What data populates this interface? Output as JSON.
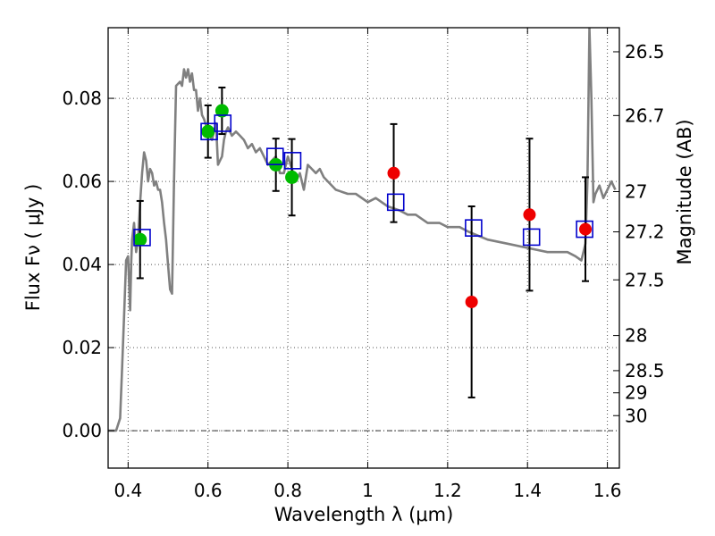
{
  "chart_data": {
    "type": "scatter",
    "xlabel": "Wavelength  λ (μm)",
    "ylabel": "Flux  Fν  ( μJy )",
    "ylabel_right": "Magnitude (AB)",
    "xlim": [
      0.35,
      1.63
    ],
    "ylim": [
      -0.009,
      0.097
    ],
    "grid": true,
    "x_ticks": [
      {
        "value": 0.4,
        "label": "0.4"
      },
      {
        "value": 0.6,
        "label": "0.6"
      },
      {
        "value": 0.8,
        "label": "0.8"
      },
      {
        "value": 1.0,
        "label": "1"
      },
      {
        "value": 1.2,
        "label": "1.2"
      },
      {
        "value": 1.4,
        "label": "1.4"
      },
      {
        "value": 1.6,
        "label": "1.6"
      }
    ],
    "y_ticks": [
      {
        "value": 0.0,
        "label": "0.00"
      },
      {
        "value": 0.02,
        "label": "0.02"
      },
      {
        "value": 0.04,
        "label": "0.04"
      },
      {
        "value": 0.06,
        "label": "0.06"
      },
      {
        "value": 0.08,
        "label": "0.08"
      }
    ],
    "right_ticks": [
      {
        "mag": 26.5,
        "label": "26.5"
      },
      {
        "mag": 26.7,
        "label": "26.7"
      },
      {
        "mag": 27.0,
        "label": "27"
      },
      {
        "mag": 27.2,
        "label": "27.2"
      },
      {
        "mag": 27.5,
        "label": "27.5"
      },
      {
        "mag": 28.0,
        "label": "28"
      },
      {
        "mag": 28.5,
        "label": "28.5"
      },
      {
        "mag": 29.0,
        "label": "29"
      },
      {
        "mag": 30.0,
        "label": "30"
      }
    ],
    "colors": {
      "model": "#808080",
      "green": "#00bb00",
      "red": "#ee0000",
      "square": "#0000cc",
      "errorbar": "#000000",
      "grid": "#555555"
    },
    "series": [
      {
        "name": "model SED",
        "kind": "line",
        "x": [
          0.35,
          0.37,
          0.38,
          0.385,
          0.39,
          0.395,
          0.4,
          0.405,
          0.408,
          0.41,
          0.415,
          0.42,
          0.425,
          0.43,
          0.435,
          0.44,
          0.445,
          0.45,
          0.455,
          0.46,
          0.465,
          0.47,
          0.475,
          0.48,
          0.485,
          0.49,
          0.495,
          0.5,
          0.505,
          0.51,
          0.515,
          0.52,
          0.53,
          0.535,
          0.54,
          0.545,
          0.55,
          0.555,
          0.56,
          0.565,
          0.57,
          0.575,
          0.58,
          0.585,
          0.59,
          0.6,
          0.61,
          0.62,
          0.625,
          0.63,
          0.635,
          0.64,
          0.645,
          0.65,
          0.66,
          0.67,
          0.68,
          0.69,
          0.7,
          0.71,
          0.72,
          0.73,
          0.74,
          0.75,
          0.76,
          0.77,
          0.78,
          0.79,
          0.8,
          0.81,
          0.82,
          0.83,
          0.84,
          0.85,
          0.86,
          0.87,
          0.88,
          0.89,
          0.9,
          0.92,
          0.95,
          0.97,
          1.0,
          1.02,
          1.05,
          1.08,
          1.1,
          1.12,
          1.15,
          1.18,
          1.2,
          1.23,
          1.25,
          1.3,
          1.35,
          1.4,
          1.45,
          1.5,
          1.52,
          1.535,
          1.54,
          1.545,
          1.55,
          1.555,
          1.56,
          1.565,
          1.57,
          1.58,
          1.59,
          1.6,
          1.61,
          1.62
        ],
        "y": [
          0.0,
          0.0,
          0.003,
          0.015,
          0.028,
          0.041,
          0.042,
          0.029,
          0.041,
          0.046,
          0.05,
          0.043,
          0.046,
          0.055,
          0.062,
          0.067,
          0.065,
          0.06,
          0.063,
          0.062,
          0.059,
          0.06,
          0.058,
          0.058,
          0.055,
          0.05,
          0.046,
          0.04,
          0.034,
          0.033,
          0.06,
          0.083,
          0.084,
          0.083,
          0.087,
          0.085,
          0.087,
          0.084,
          0.086,
          0.082,
          0.082,
          0.077,
          0.08,
          0.076,
          0.075,
          0.072,
          0.07,
          0.074,
          0.064,
          0.065,
          0.066,
          0.07,
          0.072,
          0.073,
          0.071,
          0.072,
          0.071,
          0.07,
          0.068,
          0.069,
          0.067,
          0.068,
          0.066,
          0.064,
          0.065,
          0.066,
          0.062,
          0.062,
          0.066,
          0.063,
          0.06,
          0.062,
          0.058,
          0.064,
          0.063,
          0.062,
          0.063,
          0.061,
          0.06,
          0.058,
          0.057,
          0.057,
          0.055,
          0.056,
          0.054,
          0.053,
          0.052,
          0.052,
          0.05,
          0.05,
          0.049,
          0.049,
          0.048,
          0.046,
          0.045,
          0.044,
          0.043,
          0.043,
          0.042,
          0.041,
          0.043,
          0.045,
          0.06,
          0.097,
          0.08,
          0.055,
          0.057,
          0.059,
          0.056,
          0.058,
          0.06,
          0.058
        ]
      },
      {
        "name": "observed (green)",
        "kind": "points",
        "marker": "circle",
        "x": [
          0.43,
          0.6,
          0.635,
          0.77,
          0.81
        ],
        "y": [
          0.046,
          0.072,
          0.077,
          0.064,
          0.061
        ],
        "yerr": [
          0.0093,
          0.0063,
          0.0056,
          0.0063,
          0.0092
        ]
      },
      {
        "name": "observed (red)",
        "kind": "points",
        "marker": "circle",
        "x": [
          1.065,
          1.26,
          1.405,
          1.545
        ],
        "y": [
          0.062,
          0.031,
          0.052,
          0.0485
        ],
        "yerr": [
          0.0118,
          0.023,
          0.0183,
          0.0125
        ]
      },
      {
        "name": "model photometry",
        "kind": "points",
        "marker": "square-open",
        "x": [
          0.435,
          0.603,
          0.637,
          0.768,
          0.812,
          1.07,
          1.265,
          1.41,
          1.543
        ],
        "y": [
          0.0465,
          0.072,
          0.074,
          0.066,
          0.065,
          0.055,
          0.0488,
          0.0466,
          0.0485
        ]
      }
    ]
  }
}
